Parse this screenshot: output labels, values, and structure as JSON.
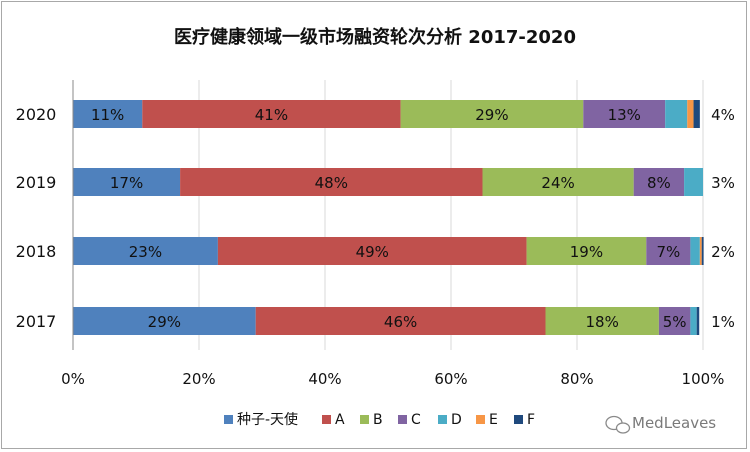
{
  "chart_data": {
    "type": "bar",
    "orientation": "horizontal",
    "stacked": true,
    "title": "医疗健康领域一级市场融资轮次分析 2017-2020",
    "categories": [
      "2020",
      "2019",
      "2018",
      "2017"
    ],
    "xlim": [
      0,
      100
    ],
    "x_ticks": [
      "0%",
      "20%",
      "40%",
      "60%",
      "80%",
      "100%"
    ],
    "grid": "vertical",
    "legend_position": "bottom",
    "series": [
      {
        "name": "种子-天使",
        "color": "#4f81bd",
        "values": [
          11,
          17,
          23,
          29
        ],
        "labels": [
          "11%",
          "17%",
          "23%",
          "29%"
        ]
      },
      {
        "name": "A",
        "color": "#c0504d",
        "values": [
          41,
          48,
          49,
          46
        ],
        "labels": [
          "41%",
          "48%",
          "49%",
          "46%"
        ]
      },
      {
        "name": "B",
        "color": "#9bbb59",
        "values": [
          29,
          24,
          19,
          18
        ],
        "labels": [
          "29%",
          "24%",
          "19%",
          "18%"
        ]
      },
      {
        "name": "C",
        "color": "#8064a2",
        "values": [
          13,
          8,
          7,
          5
        ],
        "labels": [
          "13%",
          "8%",
          "7%",
          "5%"
        ]
      },
      {
        "name": "D",
        "color": "#4bacc6",
        "values": [
          3.5,
          3,
          1.5,
          1
        ],
        "labels": [
          "",
          "",
          "",
          ""
        ]
      },
      {
        "name": "E",
        "color": "#f79646",
        "values": [
          1,
          0,
          0.3,
          0
        ],
        "labels": [
          "",
          "",
          "",
          ""
        ]
      },
      {
        "name": "F",
        "color": "#1f497d",
        "values": [
          1,
          0,
          0.3,
          0.4
        ],
        "labels": [
          "",
          "",
          "",
          ""
        ]
      }
    ],
    "right_labels": [
      "4%",
      "3%",
      "2%",
      "1%"
    ]
  },
  "watermark": {
    "text": "MedLeaves",
    "icon": "wechat-icon"
  }
}
